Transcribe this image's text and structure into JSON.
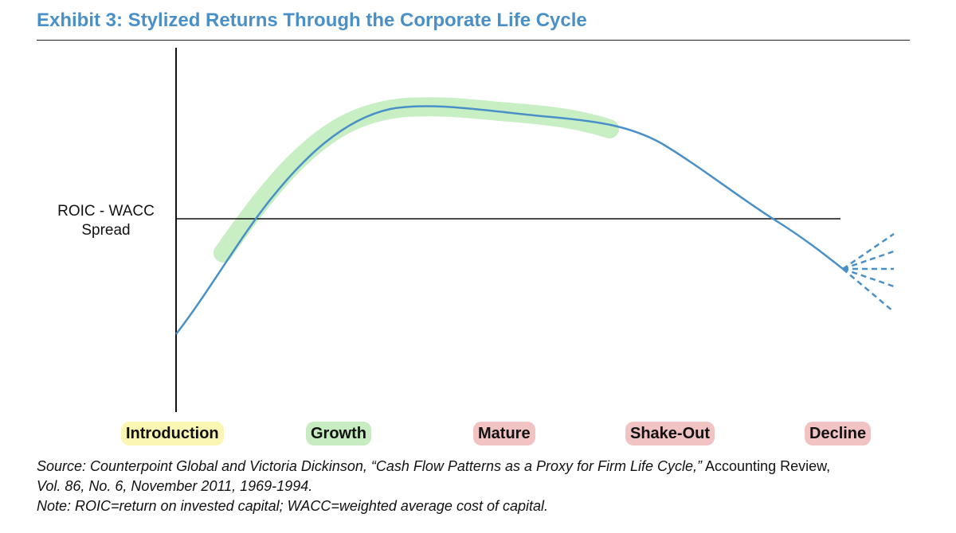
{
  "title": "Exhibit 3: Stylized Returns Through the Corporate Life Cycle",
  "chart_data": {
    "type": "line",
    "ylabel_lines": [
      "ROIC - WACC",
      "Spread"
    ],
    "stages": [
      {
        "label": "Introduction",
        "color": "#fbf6b4"
      },
      {
        "label": "Growth",
        "color": "#c7ecc2"
      },
      {
        "label": "Mature",
        "color": "#f2c3c3"
      },
      {
        "label": "Shake-Out",
        "color": "#f2c3c3"
      },
      {
        "label": "Decline",
        "color": "#f2c3c3"
      }
    ],
    "line_color": "#4a90c8",
    "highlight_color": "#b6e8b0",
    "axis_color": "#111111"
  },
  "notes": {
    "source_prefix": "Source: Counterpoint Global and Victoria Dickinson, “Cash Flow Patterns as a Proxy for Firm Life Cycle,”",
    "source_journal": " Accounting Review,",
    "source_suffix": "Vol. 86, No. 6, November 2011, 1969-1994.",
    "note": "Note: ROIC=return on invested capital; WACC=weighted average cost of capital."
  }
}
